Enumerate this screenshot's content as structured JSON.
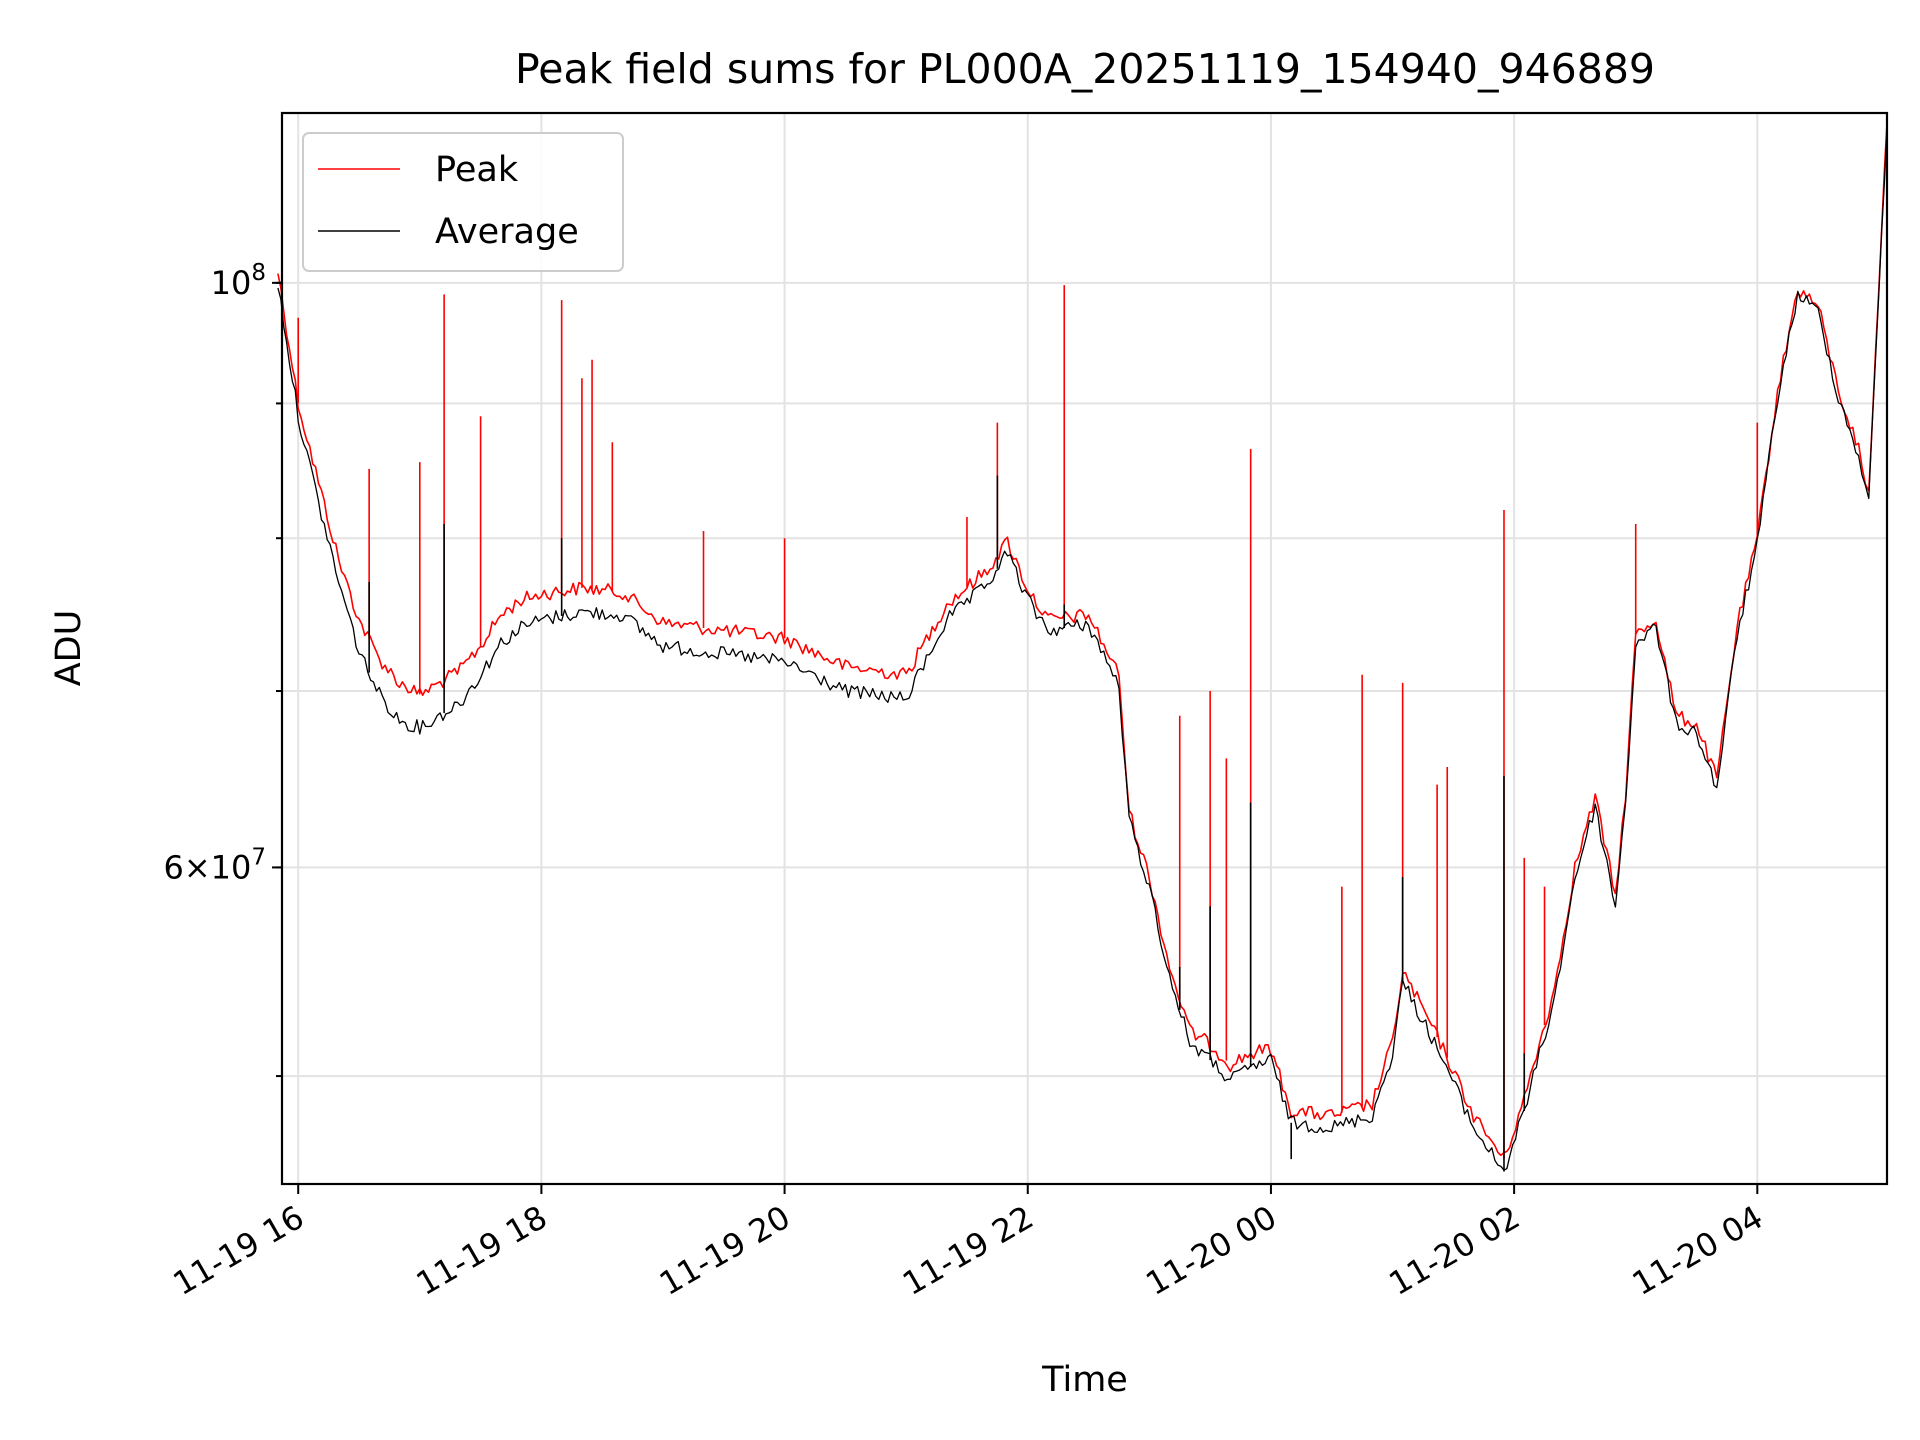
{
  "chart_data": {
    "type": "line",
    "title": "Peak field sums for PL000A_20251119_154940_946889",
    "xlabel": "Time",
    "ylabel": "ADU",
    "y_scale": "log",
    "grid": true,
    "legend_position": "top-left",
    "xlim": [
      "2025-11-19 15:52",
      "2025-11-20 05:04"
    ],
    "ylim": [
      45500000,
      116000000
    ],
    "x_ticks": [
      "11-19 16",
      "11-19 18",
      "11-19 20",
      "11-19 22",
      "11-20 00",
      "11-20 02",
      "11-20 04"
    ],
    "y_ticks": [
      {
        "value": 100000000,
        "label": "10^8"
      },
      {
        "value": 60000000,
        "label": "6×10^7"
      }
    ],
    "series": [
      {
        "name": "Peak",
        "color": "#ff0000",
        "points": [
          [
            "2025-11-19 15:50",
            101000000
          ],
          [
            "2025-11-19 16:00",
            90000000
          ],
          [
            "2025-11-19 16:10",
            84000000
          ],
          [
            "2025-11-19 16:20",
            78500000
          ],
          [
            "2025-11-19 16:30",
            74500000
          ],
          [
            "2025-11-19 16:40",
            72000000
          ],
          [
            "2025-11-19 16:50",
            70500000
          ],
          [
            "2025-11-19 17:00",
            69800000
          ],
          [
            "2025-11-19 17:10",
            70500000
          ],
          [
            "2025-11-19 17:20",
            71300000
          ],
          [
            "2025-11-19 17:30",
            72800000
          ],
          [
            "2025-11-19 17:40",
            74800000
          ],
          [
            "2025-11-19 17:50",
            75800000
          ],
          [
            "2025-11-19 18:00",
            76200000
          ],
          [
            "2025-11-19 18:20",
            76600000
          ],
          [
            "2025-11-19 18:40",
            76300000
          ],
          [
            "2025-11-19 19:00",
            74300000
          ],
          [
            "2025-11-19 19:30",
            73800000
          ],
          [
            "2025-11-19 20:00",
            73300000
          ],
          [
            "2025-11-19 20:30",
            71500000
          ],
          [
            "2025-11-19 21:00",
            71000000
          ],
          [
            "2025-11-19 21:20",
            75500000
          ],
          [
            "2025-11-19 21:40",
            77800000
          ],
          [
            "2025-11-19 21:50",
            79800000
          ],
          [
            "2025-11-19 22:00",
            76500000
          ],
          [
            "2025-11-19 22:10",
            74500000
          ],
          [
            "2025-11-19 22:30",
            74800000
          ],
          [
            "2025-11-19 22:45",
            71000000
          ],
          [
            "2025-11-19 22:50",
            63000000
          ],
          [
            "2025-11-19 23:00",
            59500000
          ],
          [
            "2025-11-19 23:10",
            55000000
          ],
          [
            "2025-11-19 23:20",
            52000000
          ],
          [
            "2025-11-19 23:30",
            51400000
          ],
          [
            "2025-11-19 23:40",
            50500000
          ],
          [
            "2025-11-19 23:50",
            51000000
          ],
          [
            "2025-11-20 00:00",
            51200000
          ],
          [
            "2025-11-20 00:10",
            48500000
          ],
          [
            "2025-11-20 00:30",
            48300000
          ],
          [
            "2025-11-20 00:50",
            48800000
          ],
          [
            "2025-11-20 01:00",
            51500000
          ],
          [
            "2025-11-20 01:05",
            54800000
          ],
          [
            "2025-11-20 01:15",
            53000000
          ],
          [
            "2025-11-20 01:25",
            51200000
          ],
          [
            "2025-11-20 01:40",
            48300000
          ],
          [
            "2025-11-20 01:55",
            46500000
          ],
          [
            "2025-11-20 02:05",
            49000000
          ],
          [
            "2025-11-20 02:20",
            54000000
          ],
          [
            "2025-11-20 02:30",
            60000000
          ],
          [
            "2025-11-20 02:40",
            63800000
          ],
          [
            "2025-11-20 02:50",
            58500000
          ],
          [
            "2025-11-20 02:55",
            64000000
          ],
          [
            "2025-11-20 03:00",
            73500000
          ],
          [
            "2025-11-20 03:10",
            74500000
          ],
          [
            "2025-11-20 03:20",
            68500000
          ],
          [
            "2025-11-20 03:30",
            68000000
          ],
          [
            "2025-11-20 03:40",
            64800000
          ],
          [
            "2025-11-20 03:50",
            74000000
          ],
          [
            "2025-11-20 04:00",
            80000000
          ],
          [
            "2025-11-20 04:10",
            91000000
          ],
          [
            "2025-11-20 04:20",
            99500000
          ],
          [
            "2025-11-20 04:30",
            98000000
          ],
          [
            "2025-11-20 04:40",
            91000000
          ],
          [
            "2025-11-20 04:50",
            86500000
          ],
          [
            "2025-11-20 04:55",
            83000000
          ],
          [
            "2025-11-20 05:00",
            100000000
          ],
          [
            "2025-11-20 05:04",
            115000000
          ]
        ],
        "spikes": [
          [
            "2025-11-19 16:00",
            97000000
          ],
          [
            "2025-11-19 16:35",
            85000000
          ],
          [
            "2025-11-19 17:00",
            85500000
          ],
          [
            "2025-11-19 17:12",
            99000000
          ],
          [
            "2025-11-19 17:30",
            89000000
          ],
          [
            "2025-11-19 18:10",
            98500000
          ],
          [
            "2025-11-19 18:20",
            92000000
          ],
          [
            "2025-11-19 18:25",
            93500000
          ],
          [
            "2025-11-19 18:35",
            87000000
          ],
          [
            "2025-11-19 19:20",
            80500000
          ],
          [
            "2025-11-19 20:00",
            80000000
          ],
          [
            "2025-11-19 21:30",
            81500000
          ],
          [
            "2025-11-19 21:45",
            88500000
          ],
          [
            "2025-11-19 22:18",
            99800000
          ],
          [
            "2025-11-19 23:15",
            68500000
          ],
          [
            "2025-11-19 23:30",
            70000000
          ],
          [
            "2025-11-19 23:38",
            66000000
          ],
          [
            "2025-11-19 23:50",
            86500000
          ],
          [
            "2025-11-20 00:35",
            59000000
          ],
          [
            "2025-11-20 00:45",
            71000000
          ],
          [
            "2025-11-20 01:05",
            70500000
          ],
          [
            "2025-11-20 01:22",
            64500000
          ],
          [
            "2025-11-20 01:27",
            65500000
          ],
          [
            "2025-11-20 01:55",
            82000000
          ],
          [
            "2025-11-20 02:05",
            60500000
          ],
          [
            "2025-11-20 02:15",
            59000000
          ],
          [
            "2025-11-20 03:00",
            81000000
          ],
          [
            "2025-11-20 04:00",
            88500000
          ]
        ]
      },
      {
        "name": "Average",
        "color": "#000000",
        "points": [
          [
            "2025-11-19 15:50",
            100000000
          ],
          [
            "2025-11-19 16:00",
            89000000
          ],
          [
            "2025-11-19 16:10",
            82500000
          ],
          [
            "2025-11-19 16:20",
            77000000
          ],
          [
            "2025-11-19 16:30",
            72500000
          ],
          [
            "2025-11-19 16:40",
            69800000
          ],
          [
            "2025-11-19 16:50",
            68200000
          ],
          [
            "2025-11-19 17:00",
            67800000
          ],
          [
            "2025-11-19 17:10",
            68500000
          ],
          [
            "2025-11-19 17:20",
            69300000
          ],
          [
            "2025-11-19 17:30",
            71000000
          ],
          [
            "2025-11-19 17:40",
            73000000
          ],
          [
            "2025-11-19 17:50",
            74000000
          ],
          [
            "2025-11-19 18:00",
            74500000
          ],
          [
            "2025-11-19 18:20",
            75000000
          ],
          [
            "2025-11-19 18:40",
            74800000
          ],
          [
            "2025-11-19 19:00",
            72800000
          ],
          [
            "2025-11-19 19:30",
            72300000
          ],
          [
            "2025-11-19 20:00",
            71800000
          ],
          [
            "2025-11-19 20:30",
            70000000
          ],
          [
            "2025-11-19 21:00",
            69500000
          ],
          [
            "2025-11-19 21:20",
            74500000
          ],
          [
            "2025-11-19 21:40",
            76800000
          ],
          [
            "2025-11-19 21:50",
            79000000
          ],
          [
            "2025-11-19 22:00",
            75800000
          ],
          [
            "2025-11-19 22:10",
            73800000
          ],
          [
            "2025-11-19 22:30",
            74200000
          ],
          [
            "2025-11-19 22:45",
            70300000
          ],
          [
            "2025-11-19 22:50",
            62500000
          ],
          [
            "2025-11-19 23:00",
            59000000
          ],
          [
            "2025-11-19 23:10",
            54500000
          ],
          [
            "2025-11-19 23:20",
            51500000
          ],
          [
            "2025-11-19 23:30",
            50700000
          ],
          [
            "2025-11-19 23:40",
            49800000
          ],
          [
            "2025-11-19 23:50",
            50400000
          ],
          [
            "2025-11-20 00:00",
            50700000
          ],
          [
            "2025-11-20 00:10",
            48000000
          ],
          [
            "2025-11-20 00:30",
            47800000
          ],
          [
            "2025-11-20 00:50",
            48300000
          ],
          [
            "2025-11-20 01:00",
            51000000
          ],
          [
            "2025-11-20 01:05",
            54300000
          ],
          [
            "2025-11-20 01:15",
            52500000
          ],
          [
            "2025-11-20 01:25",
            50700000
          ],
          [
            "2025-11-20 01:40",
            47800000
          ],
          [
            "2025-11-20 01:55",
            46000000
          ],
          [
            "2025-11-20 02:05",
            48500000
          ],
          [
            "2025-11-20 02:20",
            53500000
          ],
          [
            "2025-11-20 02:30",
            59500000
          ],
          [
            "2025-11-20 02:40",
            63300000
          ],
          [
            "2025-11-20 02:50",
            58000000
          ],
          [
            "2025-11-20 02:55",
            63500000
          ],
          [
            "2025-11-20 03:00",
            73000000
          ],
          [
            "2025-11-20 03:10",
            74000000
          ],
          [
            "2025-11-20 03:20",
            68000000
          ],
          [
            "2025-11-20 03:30",
            67500000
          ],
          [
            "2025-11-20 03:40",
            64300000
          ],
          [
            "2025-11-20 03:50",
            73500000
          ],
          [
            "2025-11-20 04:00",
            79500000
          ],
          [
            "2025-11-20 04:10",
            90500000
          ],
          [
            "2025-11-20 04:20",
            99000000
          ],
          [
            "2025-11-20 04:30",
            97500000
          ],
          [
            "2025-11-20 04:40",
            90500000
          ],
          [
            "2025-11-20 04:50",
            86000000
          ],
          [
            "2025-11-20 04:55",
            82500000
          ],
          [
            "2025-11-20 05:00",
            99500000
          ],
          [
            "2025-11-20 05:04",
            114500000
          ]
        ],
        "spikes": [
          [
            "2025-11-19 16:35",
            77000000
          ],
          [
            "2025-11-19 17:12",
            81000000
          ],
          [
            "2025-11-19 18:10",
            80000000
          ],
          [
            "2025-11-19 21:45",
            84500000
          ],
          [
            "2025-11-19 22:18",
            75500000
          ],
          [
            "2025-11-19 23:15",
            55000000
          ],
          [
            "2025-11-19 23:30",
            58000000
          ],
          [
            "2025-11-19 23:50",
            63500000
          ],
          [
            "2025-11-20 01:05",
            59500000
          ],
          [
            "2025-11-20 01:55",
            65000000
          ],
          [
            "2025-11-20 02:05",
            51000000
          ],
          [
            "2025-11-20 00:10",
            46500000
          ]
        ]
      }
    ]
  }
}
